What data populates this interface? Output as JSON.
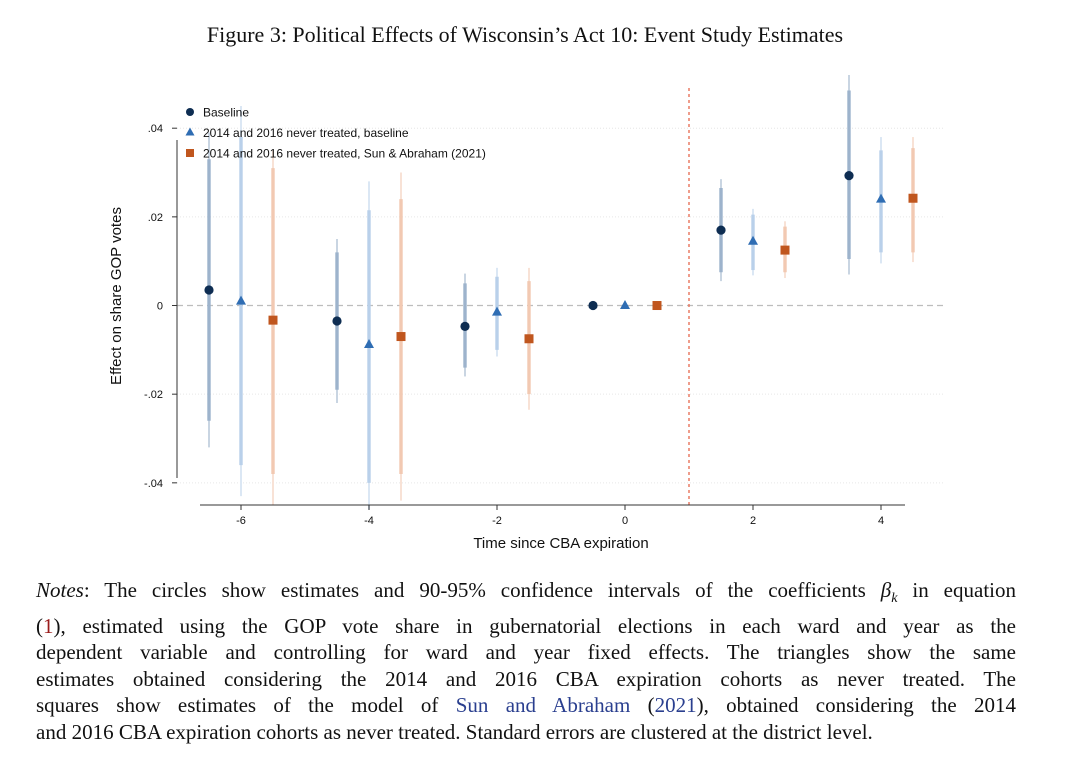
{
  "figure": {
    "title": "Figure 3: Political Effects of Wisconsin’s Act 10: Event Study Estimates"
  },
  "chart_data": {
    "type": "scatter",
    "subtype": "event-study with confidence intervals",
    "xlabel": "Time since CBA expiration",
    "ylabel": "Effect on share GOP votes",
    "xlim": [
      -7,
      5
    ],
    "ylim": [
      -0.045,
      0.052
    ],
    "x_ticks": [
      -6,
      -4,
      -2,
      0,
      2,
      4
    ],
    "x_tick_labels": [
      "-6",
      "-4",
      "-2",
      "0",
      "2",
      "4"
    ],
    "y_ticks": [
      -0.04,
      -0.02,
      0,
      0.02,
      0.04
    ],
    "y_tick_labels": [
      "-.04",
      "-.02",
      "0",
      ".02",
      ".04"
    ],
    "y_grid": true,
    "zero_line": "dashed gray",
    "vertical_reference_line": {
      "x": 1,
      "style": "dashed",
      "color": "#e8735a"
    },
    "legend_position": "top-left",
    "series": [
      {
        "name": "Baseline",
        "marker": "circle",
        "color": "#0e2d52",
        "ci_color_inner": "#9db3cc",
        "ci_color_outer": "#c9d5e2",
        "points": [
          {
            "x": -6,
            "y": 0.0035,
            "ci90": [
              -0.026,
              0.033
            ],
            "ci95": [
              -0.032,
              0.039
            ]
          },
          {
            "x": -4,
            "y": -0.0035,
            "ci90": [
              -0.019,
              0.012
            ],
            "ci95": [
              -0.022,
              0.015
            ]
          },
          {
            "x": -2,
            "y": -0.0047,
            "ci90": [
              -0.014,
              0.005
            ],
            "ci95": [
              -0.016,
              0.0072
            ]
          },
          {
            "x": 0,
            "y": 0,
            "ci90": null,
            "ci95": null
          },
          {
            "x": 2,
            "y": 0.017,
            "ci90": [
              0.0075,
              0.0265
            ],
            "ci95": [
              0.0055,
              0.0285
            ]
          },
          {
            "x": 4,
            "y": 0.0293,
            "ci90": [
              0.0105,
              0.0485
            ],
            "ci95": [
              0.007,
              0.052
            ]
          }
        ]
      },
      {
        "name": "2014 and 2016 never treated, baseline",
        "marker": "triangle",
        "color": "#2f6db3",
        "ci_color_inner": "#b9d0ea",
        "ci_color_outer": "#dbe7f4",
        "points": [
          {
            "x": -6,
            "y": 0.001,
            "ci90": [
              -0.036,
              0.038
            ],
            "ci95": [
              -0.043,
              0.045
            ]
          },
          {
            "x": -4,
            "y": -0.0088,
            "ci90": [
              -0.04,
              0.0215
            ],
            "ci95": [
              -0.046,
              0.028
            ]
          },
          {
            "x": -2,
            "y": -0.0015,
            "ci90": [
              -0.01,
              0.0065
            ],
            "ci95": [
              -0.0115,
              0.0085
            ]
          },
          {
            "x": 0,
            "y": 0,
            "ci90": null,
            "ci95": null
          },
          {
            "x": 2,
            "y": 0.0145,
            "ci90": [
              0.008,
              0.0205
            ],
            "ci95": [
              0.0068,
              0.0218
            ]
          },
          {
            "x": 4,
            "y": 0.024,
            "ci90": [
              0.012,
              0.035
            ],
            "ci95": [
              0.0095,
              0.038
            ]
          }
        ]
      },
      {
        "name": "2014 and 2016 never treated, Sun & Abraham (2021)",
        "marker": "square",
        "color": "#c0561e",
        "ci_color_inner": "#f2c9b2",
        "ci_color_outer": "#f8e2d6",
        "points": [
          {
            "x": -6,
            "y": -0.0033,
            "ci90": [
              -0.038,
              0.031
            ],
            "ci95": [
              -0.045,
              0.035
            ]
          },
          {
            "x": -4,
            "y": -0.007,
            "ci90": [
              -0.038,
              0.024
            ],
            "ci95": [
              -0.044,
              0.03
            ]
          },
          {
            "x": -2,
            "y": -0.0075,
            "ci90": [
              -0.02,
              0.0055
            ],
            "ci95": [
              -0.0235,
              0.0085
            ]
          },
          {
            "x": 0,
            "y": 0,
            "ci90": null,
            "ci95": null
          },
          {
            "x": 2,
            "y": 0.0125,
            "ci90": [
              0.0075,
              0.0178
            ],
            "ci95": [
              0.0062,
              0.019
            ]
          },
          {
            "x": 4,
            "y": 0.0242,
            "ci90": [
              0.012,
              0.0355
            ],
            "ci95": [
              0.0098,
              0.038
            ]
          }
        ]
      }
    ]
  },
  "notes": {
    "label": "Notes",
    "line1_a": ": The circles show estimates and 90-95% confidence intervals of the coefficients",
    "beta": "β",
    "beta_sub": "k",
    "line1_b": " in equation",
    "ref_open": "(",
    "ref_num": "1",
    "line2": "), estimated using the GOP vote share in gubernatorial elections in each ward and year as the",
    "line3": "dependent variable and controlling for ward and year fixed effects.  The triangles show the same",
    "line4": "estimates obtained considering the 2014 and 2016 CBA expiration cohorts as never treated.  The",
    "line5_a": "squares show estimates of the model of ",
    "sun_link": "Sun and Abraham",
    "line5_b": " (",
    "year_link": "2021",
    "line5_c": "), obtained considering the 2014",
    "line6": "and 2016 CBA expiration cohorts as never treated. Standard errors are clustered at the district level."
  }
}
